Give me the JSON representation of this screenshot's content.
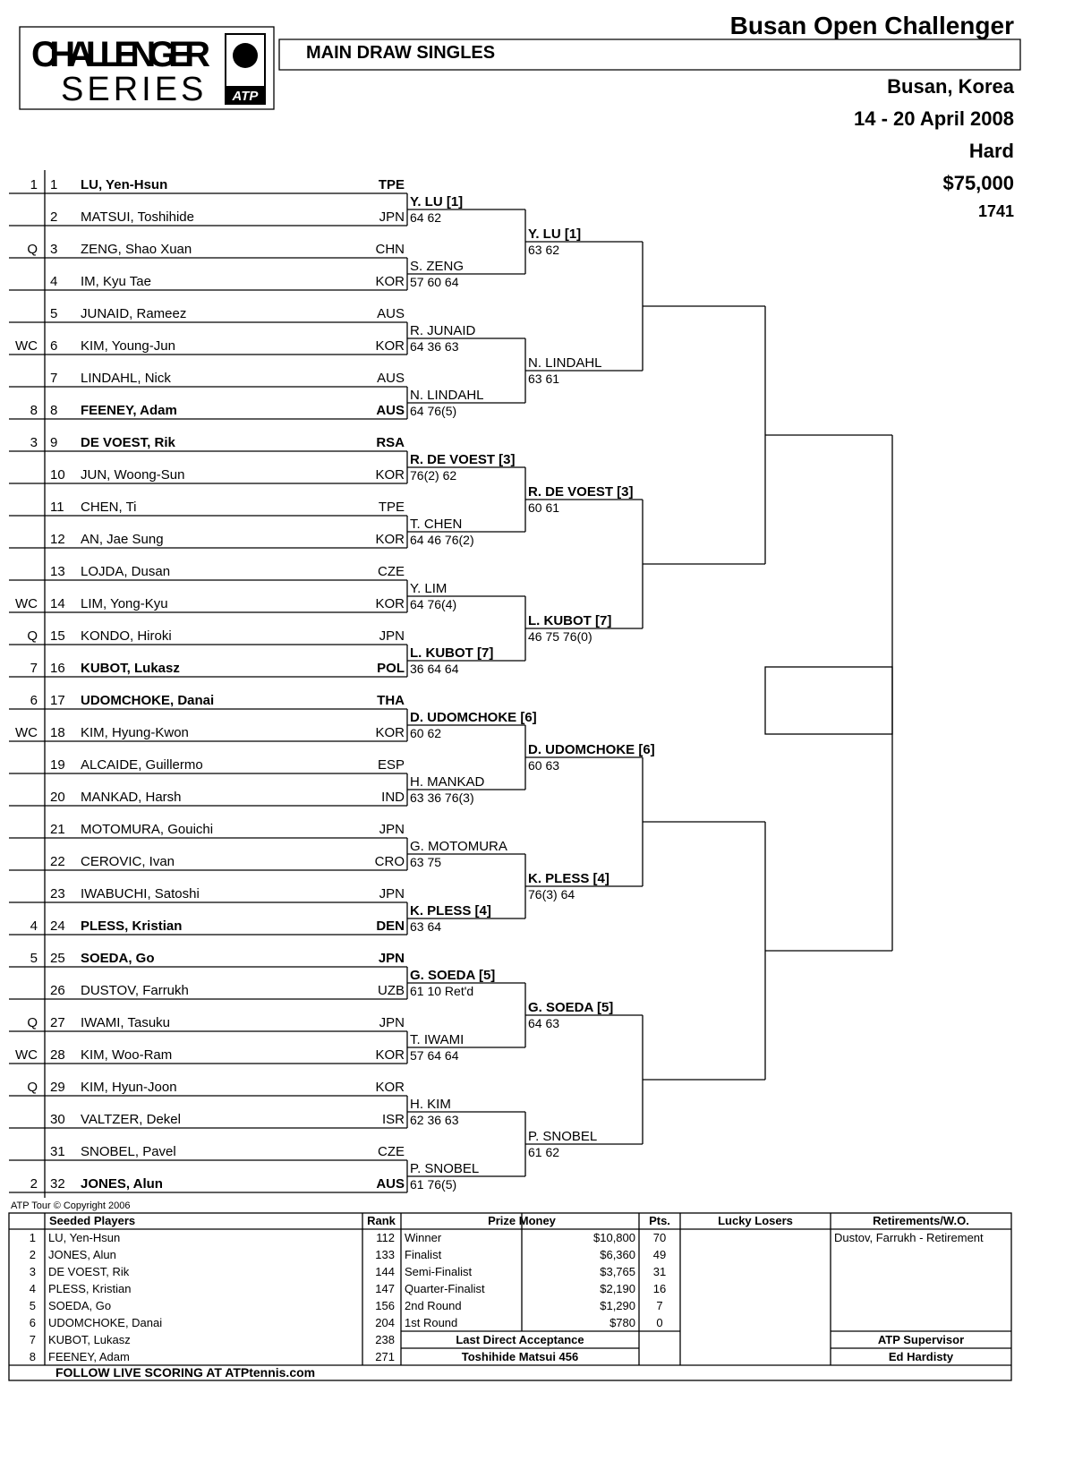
{
  "header": {
    "logo_line1": "CHALLENGER",
    "logo_line2": "SERIES",
    "logo_badge": "ATP",
    "title": "Busan Open Challenger",
    "subtitle": "MAIN DRAW SINGLES",
    "location": "Busan, Korea",
    "dates": "14 - 20 April 2008",
    "surface": "Hard",
    "prize_money": "$75,000",
    "tournament_id": "1741"
  },
  "draw": {
    "players": [
      {
        "seed": "1",
        "position": 1,
        "name": "LU, Yen-Hsun",
        "country": "TPE"
      },
      {
        "position": 2,
        "name": "MATSUI, Toshihide",
        "country": "JPN"
      },
      {
        "seed": "Q",
        "position": 3,
        "name": "ZENG, Shao Xuan",
        "country": "CHN"
      },
      {
        "position": 4,
        "name": "IM, Kyu Tae",
        "country": "KOR"
      },
      {
        "position": 5,
        "name": "JUNAID, Rameez",
        "country": "AUS"
      },
      {
        "seed": "WC",
        "position": 6,
        "name": "KIM, Young-Jun",
        "country": "KOR"
      },
      {
        "position": 7,
        "name": "LINDAHL, Nick",
        "country": "AUS"
      },
      {
        "seed": "8",
        "position": 8,
        "name": "FEENEY, Adam",
        "country": "AUS"
      },
      {
        "seed": "3",
        "position": 9,
        "name": "DE VOEST, Rik",
        "country": "RSA"
      },
      {
        "position": 10,
        "name": "JUN, Woong-Sun",
        "country": "KOR"
      },
      {
        "position": 11,
        "name": "CHEN, Ti",
        "country": "TPE"
      },
      {
        "position": 12,
        "name": "AN, Jae Sung",
        "country": "KOR"
      },
      {
        "position": 13,
        "name": "LOJDA, Dusan",
        "country": "CZE"
      },
      {
        "seed": "WC",
        "position": 14,
        "name": "LIM, Yong-Kyu",
        "country": "KOR"
      },
      {
        "seed": "Q",
        "position": 15,
        "name": "KONDO, Hiroki",
        "country": "JPN"
      },
      {
        "seed": "7",
        "position": 16,
        "name": "KUBOT, Lukasz",
        "country": "POL"
      },
      {
        "seed": "6",
        "position": 17,
        "name": "UDOMCHOKE, Danai",
        "country": "THA"
      },
      {
        "seed": "WC",
        "position": 18,
        "name": "KIM, Hyung-Kwon",
        "country": "KOR"
      },
      {
        "position": 19,
        "name": "ALCAIDE, Guillermo",
        "country": "ESP"
      },
      {
        "position": 20,
        "name": "MANKAD, Harsh",
        "country": "IND"
      },
      {
        "position": 21,
        "name": "MOTOMURA, Gouichi",
        "country": "JPN"
      },
      {
        "position": 22,
        "name": "CEROVIC, Ivan",
        "country": "CRO"
      },
      {
        "position": 23,
        "name": "IWABUCHI, Satoshi",
        "country": "JPN"
      },
      {
        "seed": "4",
        "position": 24,
        "name": "PLESS, Kristian",
        "country": "DEN"
      },
      {
        "seed": "5",
        "position": 25,
        "name": "SOEDA, Go",
        "country": "JPN"
      },
      {
        "position": 26,
        "name": "DUSTOV, Farrukh",
        "country": "UZB"
      },
      {
        "seed": "Q",
        "position": 27,
        "name": "IWAMI, Tasuku",
        "country": "JPN"
      },
      {
        "seed": "WC",
        "position": 28,
        "name": "KIM, Woo-Ram",
        "country": "KOR"
      },
      {
        "seed": "Q",
        "position": 29,
        "name": "KIM, Hyun-Joon",
        "country": "KOR"
      },
      {
        "position": 30,
        "name": "VALTZER, Dekel",
        "country": "ISR"
      },
      {
        "position": 31,
        "name": "SNOBEL, Pavel",
        "country": "CZE"
      },
      {
        "seed": "2",
        "position": 32,
        "name": "JONES, Alun",
        "country": "AUS"
      }
    ],
    "rounds": [
      [
        {
          "name": "Y. LU [1]",
          "score": "64 62"
        },
        {
          "name": "S. ZENG",
          "score": "57 60 64"
        },
        {
          "name": "R. JUNAID",
          "score": "64 36 63"
        },
        {
          "name": "N. LINDAHL",
          "score": "64 76(5)"
        },
        {
          "name": "R. DE VOEST [3]",
          "score": "76(2) 62"
        },
        {
          "name": "T. CHEN",
          "score": "64 46 76(2)"
        },
        {
          "name": "Y. LIM",
          "score": "64 76(4)"
        },
        {
          "name": "L. KUBOT [7]",
          "score": "36 64 64"
        },
        {
          "name": "D. UDOMCHOKE [6]",
          "score": "60 62"
        },
        {
          "name": "H. MANKAD",
          "score": "63 36 76(3)"
        },
        {
          "name": "G. MOTOMURA",
          "score": "63 75"
        },
        {
          "name": "K. PLESS [4]",
          "score": "63 64"
        },
        {
          "name": "G. SOEDA [5]",
          "score": "61 10 Ret'd"
        },
        {
          "name": "T. IWAMI",
          "score": "57 64 64"
        },
        {
          "name": "H. KIM",
          "score": "62 36 63"
        },
        {
          "name": "P. SNOBEL",
          "score": "61 76(5)"
        }
      ],
      [
        {
          "name": "Y. LU [1]",
          "score": "63 62"
        },
        {
          "name": "N. LINDAHL",
          "score": "63 61"
        },
        {
          "name": "R. DE VOEST [3]",
          "score": "60 61"
        },
        {
          "name": "L. KUBOT [7]",
          "score": "46 75 76(0)"
        },
        {
          "name": "D. UDOMCHOKE [6]",
          "score": "60 63"
        },
        {
          "name": "K. PLESS [4]",
          "score": "76(3) 64"
        },
        {
          "name": "G. SOEDA [5]",
          "score": "64 63"
        },
        {
          "name": "P. SNOBEL",
          "score": "61 62"
        }
      ]
    ]
  },
  "footer": {
    "copyright": "ATP Tour © Copyright 2006",
    "headers": {
      "seeded": "Seeded Players",
      "rank": "Rank",
      "prize": "Prize Money",
      "points": "Pts.",
      "lucky_losers": "Lucky Losers",
      "retirements": "Retirements/W.O."
    },
    "seeds": [
      {
        "seed": 1,
        "name": "LU, Yen-Hsun",
        "rank": 112
      },
      {
        "seed": 2,
        "name": "JONES, Alun",
        "rank": 133
      },
      {
        "seed": 3,
        "name": "DE VOEST, Rik",
        "rank": 144
      },
      {
        "seed": 4,
        "name": "PLESS, Kristian",
        "rank": 147
      },
      {
        "seed": 5,
        "name": "SOEDA, Go",
        "rank": 156
      },
      {
        "seed": 6,
        "name": "UDOMCHOKE, Danai",
        "rank": 204
      },
      {
        "seed": 7,
        "name": "KUBOT, Lukasz",
        "rank": 238
      },
      {
        "seed": 8,
        "name": "FEENEY, Adam",
        "rank": 271
      }
    ],
    "prize": [
      {
        "round": "Winner",
        "money": "$10,800",
        "points": 70
      },
      {
        "round": "Finalist",
        "money": "$6,360",
        "points": 49
      },
      {
        "round": "Semi-Finalist",
        "money": "$3,765",
        "points": 31
      },
      {
        "round": "Quarter-Finalist",
        "money": "$2,190",
        "points": 16
      },
      {
        "round": "2nd Round",
        "money": "$1,290",
        "points": 7
      },
      {
        "round": "1st Round",
        "money": "$780",
        "points": 0
      }
    ],
    "retirements": [
      "Dustov, Farrukh - Retirement"
    ],
    "last_direct_acceptance_label": "Last Direct Acceptance",
    "last_direct_acceptance": "Toshihide Matsui 456",
    "supervisor_label": "ATP Supervisor",
    "supervisor": "Ed Hardisty",
    "live_scoring": "FOLLOW LIVE SCORING AT ATPtennis.com"
  }
}
